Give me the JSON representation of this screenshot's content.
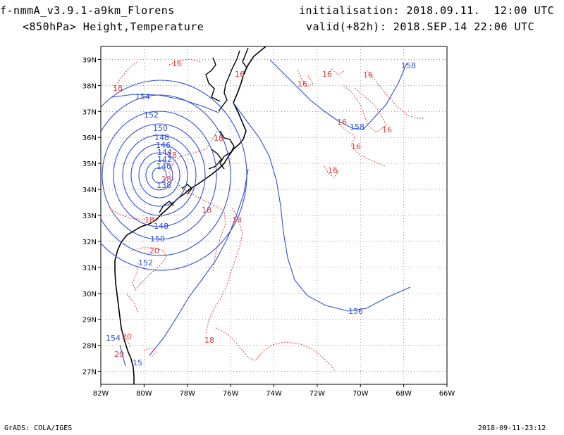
{
  "header": {
    "title_left": "f-nmmA_v3.9.1-a9km_Florens",
    "subtitle_left": "<850hPa> Height,Temperature",
    "init_line": "initialisation: 2018.09.11.  12:00 UTC",
    "valid_line": "valid(+82h): 2018.SEP.14 22:00 UTC"
  },
  "footer": {
    "credit": "GrADS: COLA/IGES",
    "timestamp": "2018-09-11-23:12"
  },
  "colors": {
    "height_contour": "#2e4fd6",
    "temperature_contour": "#e23d3d",
    "coastline": "#000000",
    "grid": "#888888"
  },
  "map": {
    "lon_ticks": [
      "82W",
      "80W",
      "78W",
      "76W",
      "74W",
      "72W",
      "70W",
      "68W",
      "66W"
    ],
    "lat_ticks": [
      "27N",
      "28N",
      "29N",
      "30N",
      "31N",
      "32N",
      "33N",
      "34N",
      "35N",
      "36N",
      "37N",
      "38N",
      "39N"
    ],
    "lon_range": [
      -82,
      -66
    ],
    "lat_range": [
      26.5,
      39.5
    ],
    "gridlines": "dotted",
    "height_labels": [
      "158",
      "154",
      "152",
      "150",
      "148",
      "146",
      "144",
      "142",
      "140",
      "138",
      "148",
      "150",
      "152",
      "156",
      "158",
      "154",
      "15"
    ],
    "temp_labels": [
      "16",
      "16",
      "16",
      "16",
      "16",
      "16",
      "16",
      "16",
      "16",
      "18",
      "18",
      "18",
      "18",
      "18",
      "18",
      "18",
      "18",
      "20",
      "20",
      "20"
    ]
  }
}
